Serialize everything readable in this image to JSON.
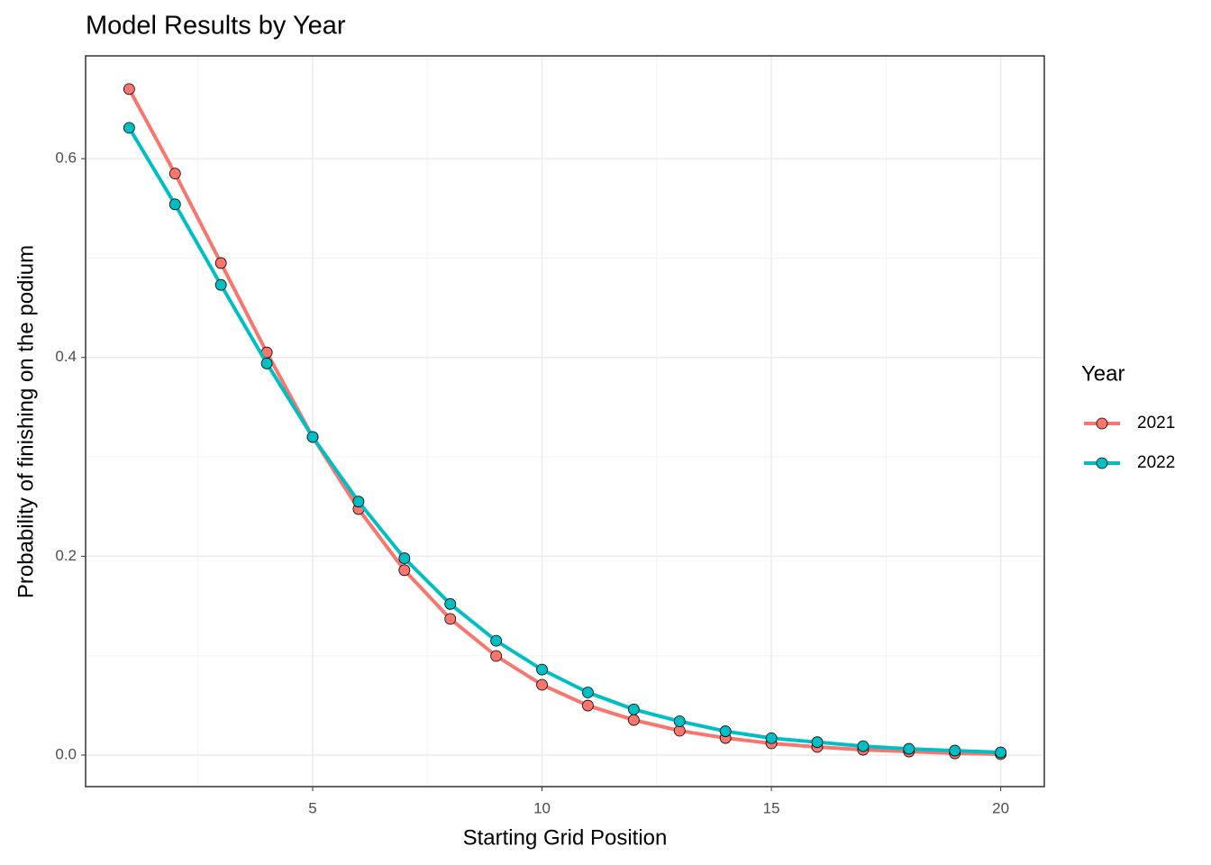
{
  "chart_data": {
    "type": "line",
    "title": "Model Results by Year",
    "x_label": "Starting Grid Position",
    "y_label": "Probability of finishing on the podium",
    "legend_title": "Year",
    "legend_position": "right",
    "grid": true,
    "x": [
      1,
      2,
      3,
      4,
      5,
      6,
      7,
      8,
      9,
      10,
      11,
      12,
      13,
      14,
      15,
      16,
      17,
      18,
      19,
      20
    ],
    "xlim": [
      0.05,
      20.95
    ],
    "xticks": [
      5,
      10,
      15,
      20
    ],
    "ylim": [
      -0.0317,
      0.7034
    ],
    "yticks": [
      {
        "value": 0,
        "label": "0.0"
      },
      0.2,
      0.4,
      0.6
    ],
    "series": [
      {
        "name": "2021",
        "color": "#f8766d",
        "values": [
          0.67,
          0.585,
          0.495,
          0.405,
          0.32,
          0.2475,
          0.186,
          0.137,
          0.0997,
          0.0707,
          0.0498,
          0.0353,
          0.0245,
          0.0172,
          0.0118,
          0.0082,
          0.0054,
          0.0036,
          0.0018,
          0.0009
        ]
      },
      {
        "name": "2022",
        "color": "#00bfc4",
        "values": [
          0.631,
          0.554,
          0.473,
          0.394,
          0.32,
          0.255,
          0.198,
          0.152,
          0.115,
          0.086,
          0.063,
          0.046,
          0.034,
          0.024,
          0.017,
          0.013,
          0.009,
          0.0063,
          0.0045,
          0.0027
        ]
      }
    ]
  }
}
